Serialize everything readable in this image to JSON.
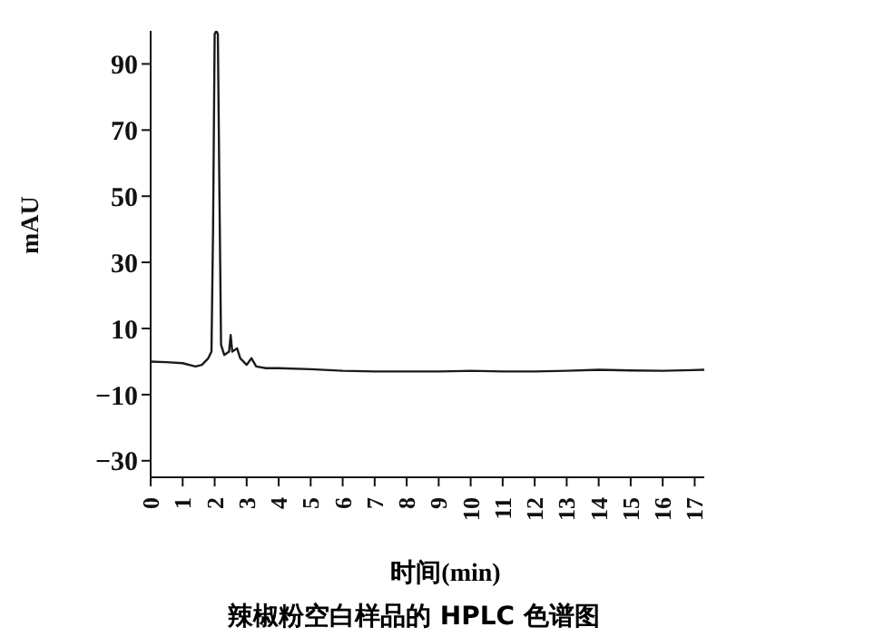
{
  "chart_data": {
    "type": "line",
    "title": "辣椒粉空白样品的 HPLC 色谱图",
    "xlabel": "时间(min)",
    "ylabel": "mAU",
    "xlim": [
      0,
      17.3
    ],
    "xticks": [
      0,
      1,
      2,
      3,
      4,
      5,
      6,
      7,
      8,
      9,
      10,
      11,
      12,
      13,
      14,
      15,
      16,
      17
    ],
    "ylim": [
      -35,
      100
    ],
    "yticks": [
      90,
      70,
      50,
      30,
      10,
      {
        "value": -10,
        "label": "−10"
      },
      {
        "value": -30,
        "label": "−30"
      }
    ],
    "marker": "none",
    "line_style": "solid",
    "series": [
      {
        "color": "#1a1a1a",
        "x": [
          0,
          0.5,
          1,
          1.4,
          1.6,
          1.8,
          1.9,
          1.95,
          2.0,
          2.05,
          2.1,
          2.15,
          2.2,
          2.3,
          2.45,
          2.5,
          2.55,
          2.7,
          2.8,
          3.0,
          3.15,
          3.3,
          3.6,
          4,
          5,
          6,
          7,
          8,
          9,
          10,
          11,
          12,
          13,
          14,
          15,
          16,
          17.3
        ],
        "values": [
          0,
          -0.2,
          -0.5,
          -1.5,
          -1,
          1,
          3,
          40,
          99,
          100,
          99,
          50,
          5,
          2,
          3,
          8,
          3,
          4,
          1,
          -1,
          1,
          -1.5,
          -2,
          -2,
          -2.3,
          -2.8,
          -3,
          -3,
          -3,
          -2.8,
          -3,
          -3,
          -2.8,
          -2.5,
          -2.7,
          -2.8,
          -2.5
        ]
      }
    ]
  }
}
